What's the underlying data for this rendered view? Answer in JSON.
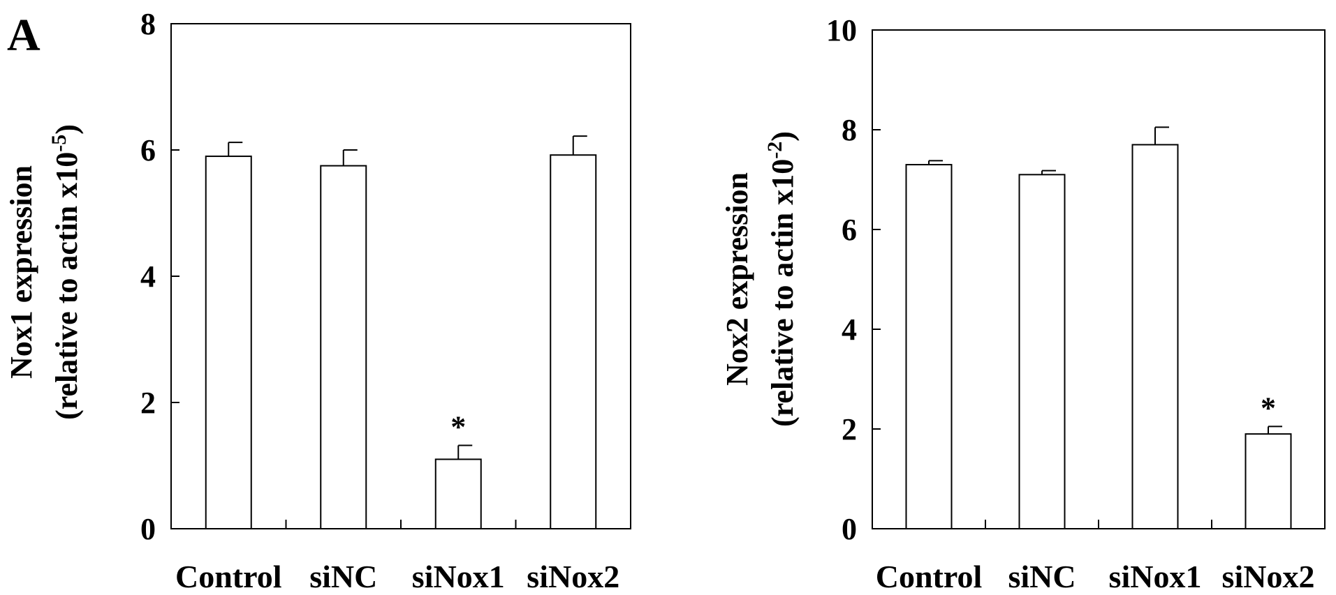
{
  "panel_label": "A",
  "chart_data": [
    {
      "type": "bar",
      "categories": [
        "Control",
        "siNC",
        "siNox1",
        "siNox2"
      ],
      "values": [
        5.9,
        5.75,
        1.1,
        5.92
      ],
      "errors": [
        0.22,
        0.25,
        0.22,
        0.3
      ],
      "annotations": [
        "",
        "",
        "*",
        ""
      ],
      "ylim": [
        0,
        8
      ],
      "yticks": [
        0,
        2,
        4,
        6,
        8
      ],
      "ylabel_line1": "Nox1 expression",
      "ylabel_line2_base": "(relative to actin x10",
      "ylabel_line2_sup": "-5",
      "ylabel_line2_end": ")",
      "bar_fill": "#ffffff",
      "stroke": "#000000"
    },
    {
      "type": "bar",
      "categories": [
        "Control",
        "siNC",
        "siNox1",
        "siNox2"
      ],
      "values": [
        7.3,
        7.1,
        7.7,
        1.9
      ],
      "errors": [
        0.08,
        0.08,
        0.35,
        0.15
      ],
      "annotations": [
        "",
        "",
        "",
        "*"
      ],
      "ylim": [
        0,
        10
      ],
      "yticks": [
        0,
        2,
        4,
        6,
        8,
        10
      ],
      "ylabel_line1": "Nox2 expression",
      "ylabel_line2_base": "(relative to actin x10",
      "ylabel_line2_sup": "-2",
      "ylabel_line2_end": ")",
      "bar_fill": "#ffffff",
      "stroke": "#000000"
    }
  ]
}
